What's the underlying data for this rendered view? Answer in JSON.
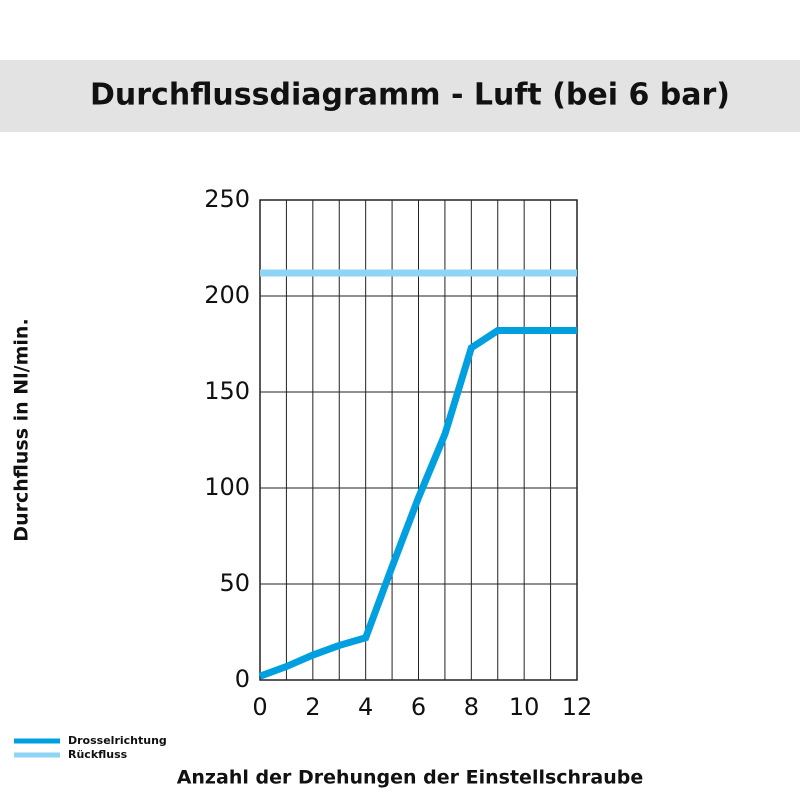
{
  "chart_data": {
    "type": "line",
    "title": "Durchflussdiagramm - Luft (bei 6 bar)",
    "x_label": "Anzahl der Drehungen der Einstellschraube",
    "y_label": "Durchfluss in Nl/min.",
    "x": [
      0,
      1,
      2,
      3,
      4,
      5,
      6,
      7,
      8,
      9,
      10,
      11,
      12
    ],
    "series": [
      {
        "name": "Drosselrichtung",
        "color": "#00a0e0",
        "values": [
          2,
          7,
          13,
          18,
          22,
          59,
          95,
          128,
          173,
          182,
          182,
          182,
          182
        ]
      },
      {
        "name": "Rückfluss",
        "color": "#8fd3f5",
        "values": [
          212,
          212,
          212,
          212,
          212,
          212,
          212,
          212,
          212,
          212,
          212,
          212,
          212
        ]
      }
    ],
    "xlim": [
      0,
      12
    ],
    "xticks": [
      0,
      2,
      4,
      6,
      8,
      10,
      12
    ],
    "ylim": [
      0,
      250
    ],
    "yticks": [
      0,
      50,
      100,
      150,
      200,
      250
    ],
    "grid": true,
    "legend": "bottom-left"
  }
}
